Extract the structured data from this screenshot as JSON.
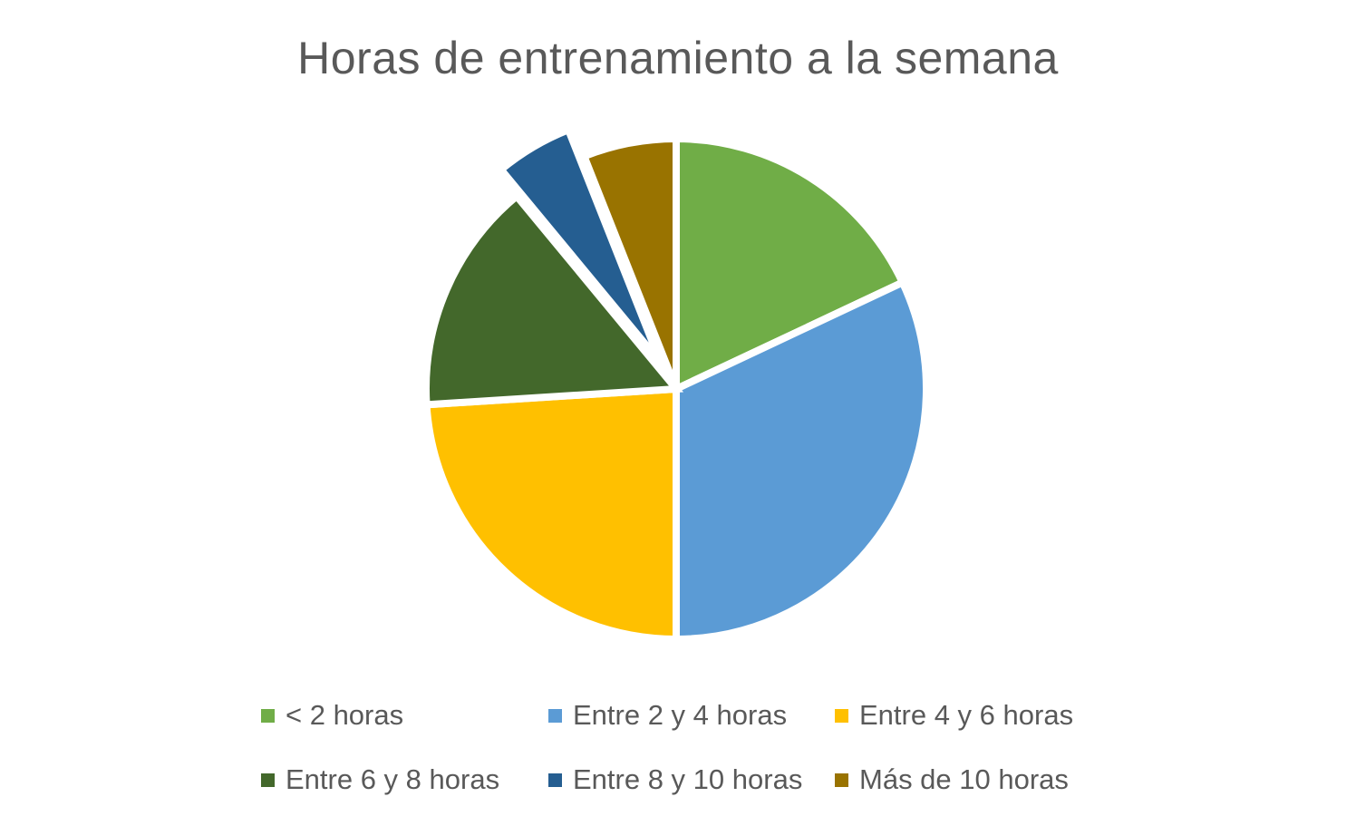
{
  "chart_data": {
    "type": "pie",
    "title": "Horas de entrenamiento a la semana",
    "legend_position": "bottom",
    "slices": [
      {
        "label": "< 2 horas",
        "value": 18,
        "color": "#70AD47"
      },
      {
        "label": "Entre 2 y 4 horas",
        "value": 32,
        "color": "#5B9BD5"
      },
      {
        "label": "Entre 4 y 6 horas",
        "value": 24,
        "color": "#FFC000"
      },
      {
        "label": "Entre 6 y 8 horas",
        "value": 15,
        "color": "#43682B"
      },
      {
        "label": "Entre 8 y 10 horas",
        "value": 5,
        "color": "#255E91",
        "exploded": true
      },
      {
        "label": "Más de 10 horas",
        "value": 6,
        "color": "#997300"
      }
    ]
  }
}
